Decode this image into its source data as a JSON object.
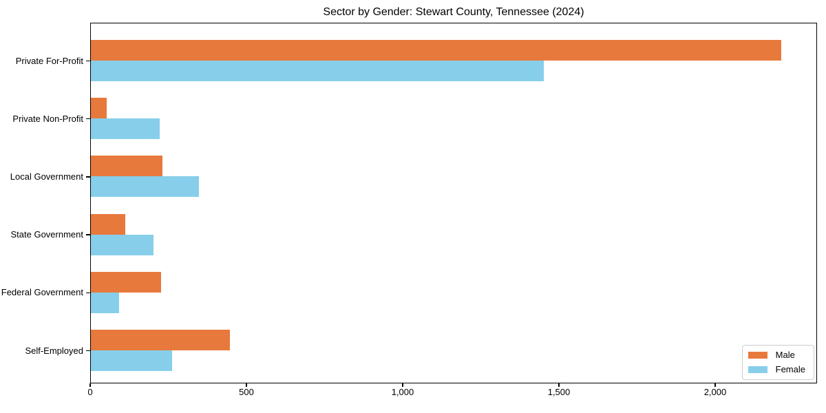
{
  "figure": {
    "title": "Sector by Gender: Stewart County, Tennessee (2024)"
  },
  "colors": {
    "male": "#E8793C",
    "female": "#87CEEB",
    "axis": "#000000",
    "legend_border": "#CCCCCC",
    "background": "#FFFFFF"
  },
  "legend": {
    "position": "lower-right",
    "entries": [
      "Male",
      "Female"
    ]
  },
  "chart_data": {
    "type": "bar",
    "orientation": "horizontal",
    "title": "Sector by Gender: Stewart County, Tennessee (2024)",
    "xlabel": "",
    "ylabel": "",
    "categories": [
      "Private For-Profit",
      "Private Non-Profit",
      "Local Government",
      "State Government",
      "Federal Government",
      "Self-Employed"
    ],
    "series": [
      {
        "name": "Male",
        "color": "#E8793C",
        "values": [
          2210,
          50,
          230,
          110,
          225,
          445
        ]
      },
      {
        "name": "Female",
        "color": "#87CEEB",
        "values": [
          1450,
          220,
          345,
          200,
          90,
          260
        ]
      }
    ],
    "xlim": [
      0,
      2326
    ],
    "xticks": [
      0,
      500,
      1000,
      1500,
      2000
    ],
    "xtick_labels": [
      "0",
      "500",
      "1,000",
      "1,500",
      "2,000"
    ],
    "grid": false,
    "legend_position": "lower right"
  }
}
